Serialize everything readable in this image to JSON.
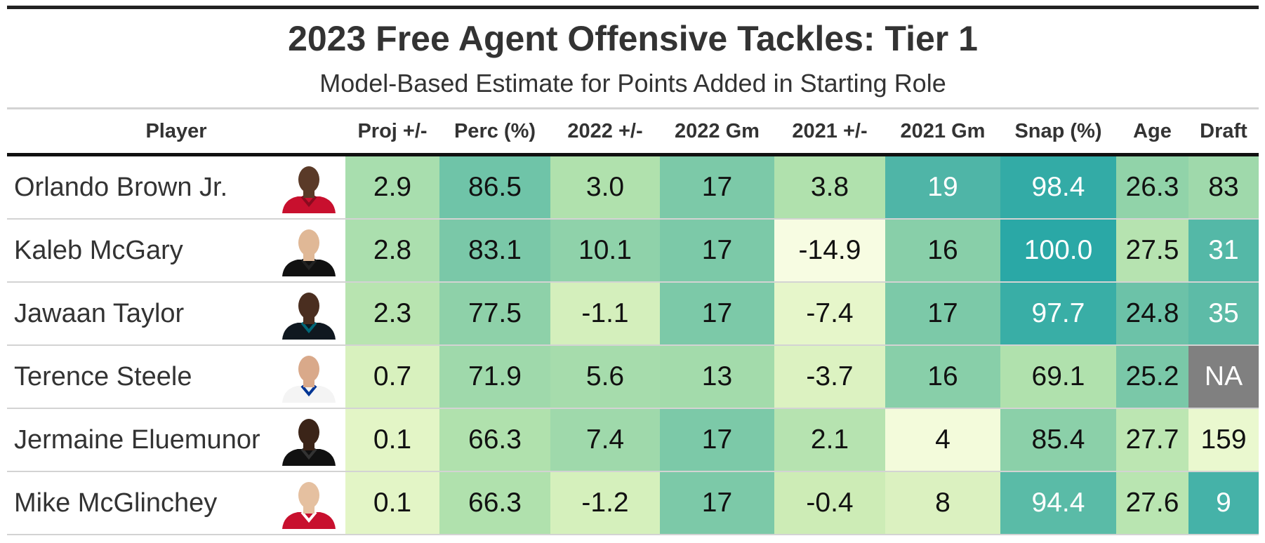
{
  "header": {
    "title": "2023 Free Agent Offensive Tackles: Tier 1",
    "subtitle": "Model-Based Estimate for Points Added in Starting Role"
  },
  "table": {
    "columns": [
      "Player",
      "Proj +/-",
      "Perc (%)",
      "2022 +/-",
      "2022 Gm",
      "2021 +/-",
      "2021 Gm",
      "Snap (%)",
      "Age",
      "Draft"
    ],
    "rows": [
      [
        "Orlando Brown Jr.",
        "2.9",
        "86.5",
        "3.0",
        "17",
        "3.8",
        "19",
        "98.4",
        "26.3",
        "83"
      ],
      [
        "Kaleb McGary",
        "2.8",
        "83.1",
        "10.1",
        "17",
        "-14.9",
        "16",
        "100.0",
        "27.5",
        "31"
      ],
      [
        "Jawaan Taylor",
        "2.3",
        "77.5",
        "-1.1",
        "17",
        "-7.4",
        "17",
        "97.7",
        "24.8",
        "35"
      ],
      [
        "Terence Steele",
        "0.7",
        "71.9",
        "5.6",
        "13",
        "-3.7",
        "16",
        "69.1",
        "25.2",
        "NA"
      ],
      [
        "Jermaine Eluemunor",
        "0.1",
        "66.3",
        "7.4",
        "17",
        "2.1",
        "4",
        "85.4",
        "27.7",
        "159"
      ],
      [
        "Mike McGlinchey",
        "0.1",
        "66.3",
        "-1.2",
        "17",
        "-0.4",
        "8",
        "94.4",
        "27.6",
        "9"
      ]
    ],
    "cell_colors": [
      [
        "#a8deae",
        "#6fc4a8",
        "#b0e1ad",
        "#7cc9a8",
        "#b0e1ad",
        "#4fb5a7",
        "#33aba6",
        "#91d3a9",
        "#9fd9ab"
      ],
      [
        "#abdfae",
        "#7ac8a8",
        "#8fd2aa",
        "#7cc9a8",
        "#f7fce2",
        "#88cfa9",
        "#2aa8a6",
        "#b6e3b0",
        "#54b8a7"
      ],
      [
        "#b8e4b0",
        "#8ed1a9",
        "#d4efbc",
        "#7cc9a8",
        "#e6f6ca",
        "#7cc9a8",
        "#39aea6",
        "#6cc2a8",
        "#5dbba7"
      ],
      [
        "#d8f1be",
        "#9fd9ab",
        "#a6dcac",
        "#a3dbab",
        "#dcf2c1",
        "#88cfa9",
        "#b0e1ad",
        "#7ac8a8",
        "#808080"
      ],
      [
        "#e3f5c6",
        "#b0e1ad",
        "#9fd9ab",
        "#7cc9a8",
        "#b6e3b0",
        "#f3fbdb",
        "#8bd0a9",
        "#bce6b2",
        "#eaf8cf"
      ],
      [
        "#e3f5c6",
        "#b0e1ad",
        "#d5f0bc",
        "#7cc9a8",
        "#cdecb6",
        "#dbf1c0",
        "#5abba7",
        "#b9e5b1",
        "#45b2a8"
      ]
    ]
  }
}
